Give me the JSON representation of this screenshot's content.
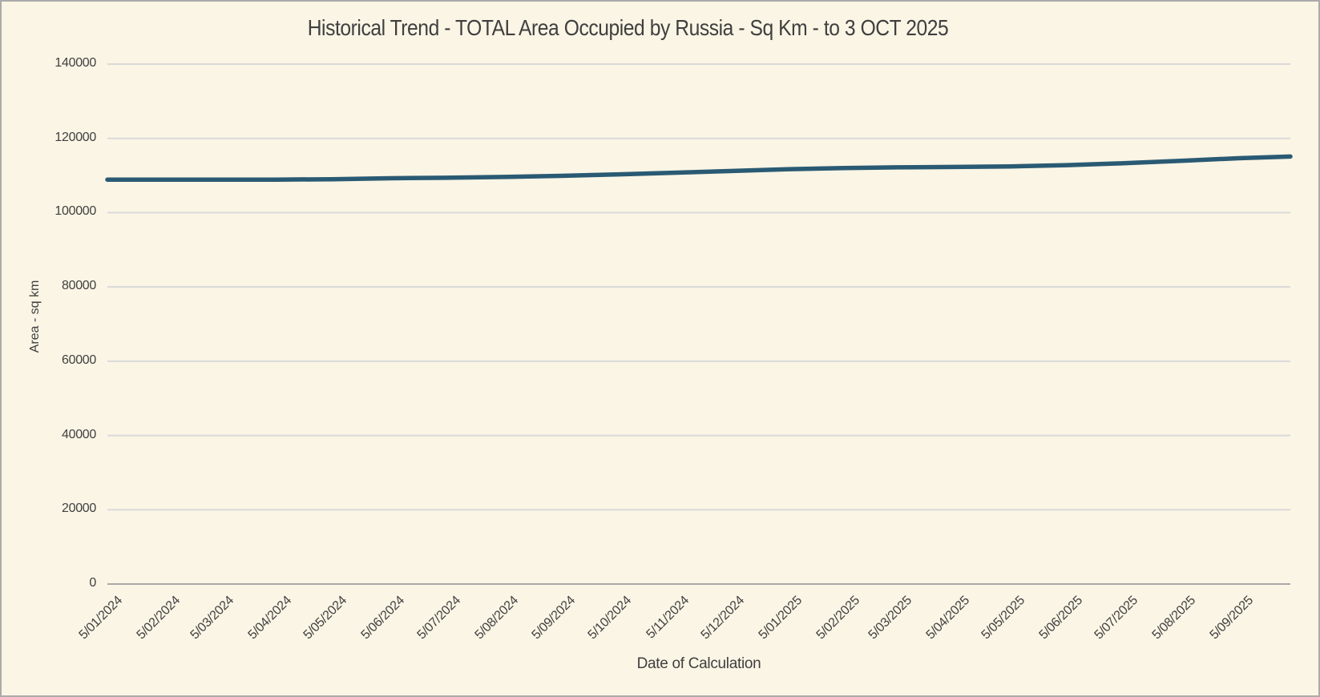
{
  "canvas": {
    "background_color": "#FBF5E5",
    "border_color": "#ABABAB",
    "text_color": "#3F3F3F"
  },
  "chart_data": {
    "type": "line",
    "title": "Historical Trend - TOTAL Area Occupied by Russia - Sq Km - to 3 OCT 2025",
    "xlabel": "Date of Calculation",
    "ylabel": "Area - sq km",
    "ylim": [
      0,
      140000
    ],
    "yticks": [
      0,
      20000,
      40000,
      60000,
      80000,
      100000,
      120000,
      140000
    ],
    "ytick_labels": [
      "0",
      "20000",
      "40000",
      "60000",
      "80000",
      "100000",
      "120000",
      "140000"
    ],
    "xtick_labels": [
      "5/01/2024",
      "5/02/2024",
      "5/03/2024",
      "5/04/2024",
      "5/05/2024",
      "5/06/2024",
      "5/07/2024",
      "5/08/2024",
      "5/09/2024",
      "5/10/2024",
      "5/11/2024",
      "5/12/2024",
      "5/01/2025",
      "5/02/2025",
      "5/03/2025",
      "5/04/2025",
      "5/05/2025",
      "5/06/2025",
      "5/07/2025",
      "5/08/2025",
      "5/09/2025"
    ],
    "xtick_dates": [
      "2024-01-05",
      "2024-02-05",
      "2024-03-05",
      "2024-04-05",
      "2024-05-05",
      "2024-06-05",
      "2024-07-05",
      "2024-08-05",
      "2024-09-05",
      "2024-10-05",
      "2024-11-05",
      "2024-12-05",
      "2025-01-05",
      "2025-02-05",
      "2025-03-05",
      "2025-04-05",
      "2025-05-05",
      "2025-06-05",
      "2025-07-05",
      "2025-08-05",
      "2025-09-05"
    ],
    "x_axis_range": [
      "2024-01-05",
      "2025-10-03"
    ],
    "grid": true,
    "legend": "none",
    "colors": {
      "line": "#2A5A73",
      "grid": "#D9D9D9",
      "axis": "#A9A9A9"
    },
    "series": [
      {
        "name": "TOTAL Area Occupied by Russia - Sq Km",
        "x": [
          "2024-01-05",
          "2024-02-05",
          "2024-03-05",
          "2024-04-05",
          "2024-05-05",
          "2024-06-05",
          "2024-07-05",
          "2024-08-05",
          "2024-09-05",
          "2024-10-05",
          "2024-11-05",
          "2024-12-05",
          "2025-01-05",
          "2025-02-05",
          "2025-03-05",
          "2025-04-05",
          "2025-05-05",
          "2025-06-05",
          "2025-07-05",
          "2025-08-05",
          "2025-09-05",
          "2025-10-03"
        ],
        "values": [
          108900,
          108900,
          108880,
          108900,
          109000,
          109250,
          109400,
          109600,
          109900,
          110300,
          110750,
          111200,
          111700,
          112000,
          112200,
          112300,
          112450,
          112800,
          113300,
          113950,
          114650,
          115100
        ]
      }
    ]
  }
}
